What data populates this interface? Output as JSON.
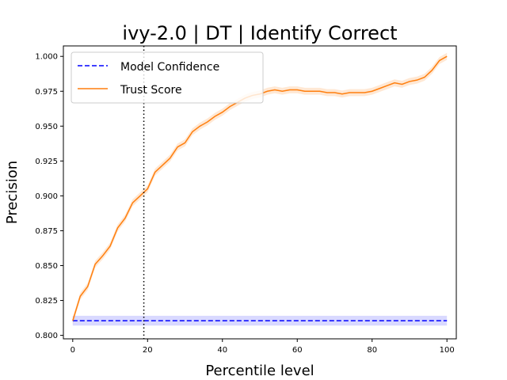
{
  "chart_data": {
    "type": "line",
    "title": "ivy-2.0 | DT | Identify Correct",
    "xlabel": "Percentile level",
    "ylabel": "Precision",
    "xlim": [
      -2.5,
      102.5
    ],
    "ylim": [
      0.7975,
      1.0075
    ],
    "xticks": [
      0,
      20,
      40,
      60,
      80,
      100
    ],
    "yticks": [
      0.8,
      0.825,
      0.85,
      0.875,
      0.9,
      0.925,
      0.95,
      0.975,
      1.0
    ],
    "xtick_labels": [
      "0",
      "20",
      "40",
      "60",
      "80",
      "100"
    ],
    "ytick_labels": [
      "0.800",
      "0.825",
      "0.850",
      "0.875",
      "0.900",
      "0.925",
      "0.950",
      "0.975",
      "1.000"
    ],
    "grid": false,
    "legend_position": "upper-left",
    "vline": {
      "x": 19,
      "style": "dotted",
      "color": "#000000"
    },
    "series": [
      {
        "name": "Model Confidence",
        "color": "#0000ff",
        "style": "dashed",
        "band": [
          0.807,
          0.814
        ],
        "band_color": "#0000ff",
        "x": [
          0,
          100
        ],
        "y": [
          0.8105,
          0.8105
        ]
      },
      {
        "name": "Trust Score",
        "color": "#ff7f0e",
        "style": "solid",
        "band_width": 0.0025,
        "band_color": "#ff7f0e",
        "x": [
          0,
          2,
          4,
          6,
          8,
          10,
          12,
          14,
          16,
          18,
          20,
          22,
          24,
          26,
          28,
          30,
          32,
          34,
          36,
          38,
          40,
          42,
          44,
          46,
          48,
          50,
          52,
          54,
          56,
          58,
          60,
          62,
          64,
          66,
          68,
          70,
          72,
          74,
          76,
          78,
          80,
          82,
          84,
          86,
          88,
          90,
          92,
          94,
          96,
          98,
          100
        ],
        "y": [
          0.8105,
          0.828,
          0.835,
          0.851,
          0.857,
          0.864,
          0.877,
          0.884,
          0.895,
          0.9,
          0.905,
          0.917,
          0.922,
          0.927,
          0.935,
          0.938,
          0.946,
          0.95,
          0.953,
          0.957,
          0.96,
          0.964,
          0.967,
          0.97,
          0.972,
          0.973,
          0.975,
          0.976,
          0.975,
          0.976,
          0.976,
          0.975,
          0.975,
          0.975,
          0.974,
          0.974,
          0.973,
          0.974,
          0.974,
          0.974,
          0.975,
          0.977,
          0.979,
          0.981,
          0.98,
          0.982,
          0.983,
          0.985,
          0.99,
          0.997,
          1.0
        ]
      }
    ]
  }
}
